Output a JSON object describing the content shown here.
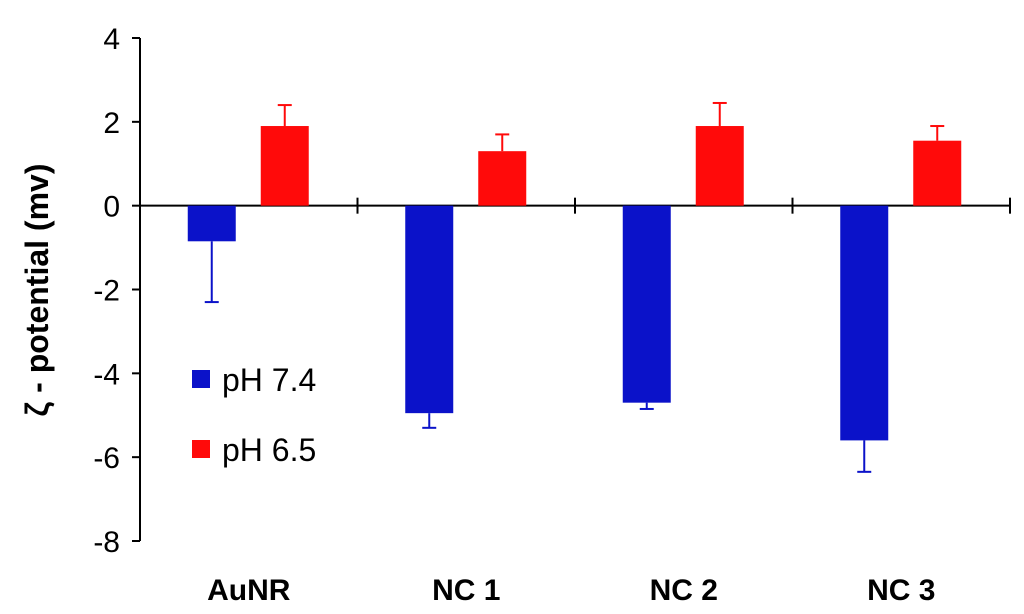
{
  "chart_data": {
    "type": "bar",
    "title": "",
    "xlabel": "",
    "ylabel": "ζ - potential (mv)",
    "ylim": [
      -8,
      4
    ],
    "yticks": [
      "4",
      "2",
      "0",
      "-2",
      "-4",
      "-6",
      "-8"
    ],
    "categories": [
      "AuNR",
      "NC 1",
      "NC 2",
      "NC 3"
    ],
    "series": [
      {
        "name": "pH 7.4",
        "color": "#0b12c9",
        "values": [
          -0.85,
          -4.95,
          -4.7,
          -5.6
        ],
        "errors": [
          1.45,
          0.35,
          0.15,
          0.75
        ],
        "error_direction": "down"
      },
      {
        "name": "pH 6.5",
        "color": "#ff0a0a",
        "values": [
          1.9,
          1.3,
          1.9,
          1.55
        ],
        "errors": [
          0.5,
          0.4,
          0.55,
          0.35
        ],
        "error_direction": "up"
      }
    ],
    "legend": {
      "position": "left-bottom"
    },
    "grid": false
  }
}
